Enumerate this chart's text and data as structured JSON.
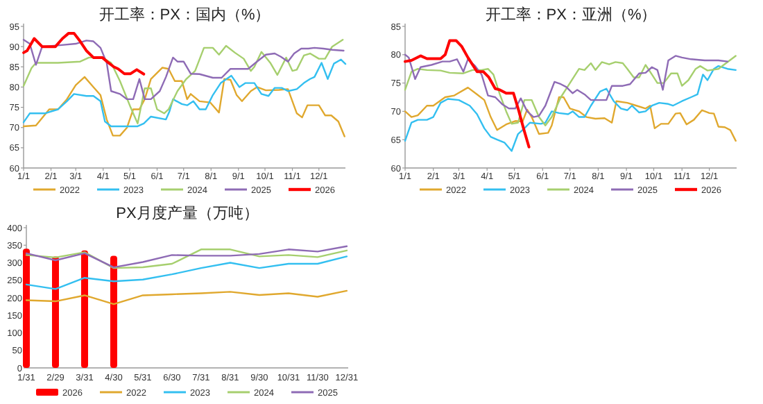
{
  "chart_data": [
    {
      "type": "line",
      "title": "开工率：PX：国内（%）",
      "xlim": [
        "--01-01",
        "--12-31"
      ],
      "ylim": [
        60,
        95
      ],
      "yticks": [
        60,
        65,
        70,
        75,
        80,
        85,
        90,
        95
      ],
      "xticks": [
        {
          "value": "--01-01",
          "label": "1/1"
        },
        {
          "value": "--02-01",
          "label": "2/1"
        },
        {
          "value": "--03-01",
          "label": "3/1"
        },
        {
          "value": "--04-01",
          "label": "4/1"
        },
        {
          "value": "--05-01",
          "label": "5/1"
        },
        {
          "value": "--06-01",
          "label": "6/1"
        },
        {
          "value": "--07-01",
          "label": "7/1"
        },
        {
          "value": "--08-01",
          "label": "8/1"
        },
        {
          "value": "--09-01",
          "label": "9/1"
        },
        {
          "value": "--10-01",
          "label": "10/1"
        },
        {
          "value": "--11-01",
          "label": "11/1"
        },
        {
          "value": "--12-01",
          "label": "12/1"
        }
      ],
      "legend": "bottom",
      "line_style": "solid",
      "series": [
        {
          "name": "2022",
          "color": "#e0a82e",
          "x": [
            "--01-01",
            "--01-15",
            "--01-30",
            "--02-09",
            "--02-19",
            "--03-01",
            "--03-11",
            "--03-21",
            "--03-29",
            "--04-05",
            "--04-12",
            "--04-20",
            "--04-28",
            "--05-05",
            "--05-12",
            "--05-18",
            "--05-25",
            "--06-07",
            "--06-14",
            "--06-21",
            "--06-29",
            "--07-05",
            "--07-09",
            "--07-19",
            "--07-31",
            "--08-10",
            "--08-16",
            "--08-23",
            "--08-30",
            "--09-05",
            "--09-15",
            "--09-22",
            "--10-02",
            "--10-17",
            "--10-27",
            "--11-06",
            "--11-12",
            "--11-18",
            "--12-01",
            "--12-08",
            "--12-15",
            "--12-23",
            "--12-30"
          ],
          "values": [
            70.3,
            70.5,
            74.5,
            74.5,
            77,
            80.5,
            82.5,
            80,
            78,
            72,
            68,
            68,
            70,
            74.5,
            74.5,
            77,
            82,
            84.8,
            84.5,
            81.5,
            81.5,
            77,
            78.3,
            76.5,
            76.2,
            73.7,
            82,
            81.8,
            78,
            76.5,
            79,
            80,
            79.2,
            79.3,
            79.5,
            73.5,
            72.5,
            75.5,
            75.5,
            73,
            73,
            71.5,
            67.8
          ]
        },
        {
          "name": "2023",
          "color": "#33bff0",
          "x": [
            "--01-01",
            "--01-08",
            "--01-25",
            "--02-09",
            "--02-19",
            "--02-27",
            "--03-13",
            "--03-21",
            "--03-29",
            "--04-03",
            "--04-10",
            "--05-10",
            "--05-17",
            "--05-25",
            "--06-11",
            "--06-15",
            "--06-19",
            "--06-29",
            "--07-05",
            "--07-12",
            "--07-19",
            "--07-26",
            "--08-03",
            "--08-12",
            "--08-24",
            "--09-02",
            "--09-09",
            "--09-19",
            "--09-27",
            "--10-05",
            "--10-12",
            "--10-20",
            "--10-27",
            "--11-06",
            "--11-14",
            "--11-21",
            "--11-26",
            "--12-04",
            "--12-11",
            "--12-18",
            "--12-26",
            "--12-31"
          ],
          "values": [
            71.3,
            73.5,
            73.5,
            74.5,
            76.5,
            78.3,
            77.8,
            77.8,
            76.5,
            71.5,
            70.3,
            70.3,
            71,
            72.7,
            72,
            74,
            77,
            75.8,
            75.5,
            76.5,
            74.5,
            74.5,
            78,
            81,
            82.8,
            80,
            81,
            81,
            78.3,
            77.8,
            79.8,
            79.8,
            79,
            79.5,
            81,
            82,
            82.5,
            86,
            82,
            85.8,
            86.8,
            85.7
          ]
        },
        {
          "name": "2024",
          "color": "#a6cf6e",
          "x": [
            "--01-01",
            "--01-10",
            "--01-15",
            "--02-09",
            "--03-06",
            "--03-16",
            "--03-31",
            "--04-10",
            "--04-20",
            "--05-02",
            "--05-10",
            "--05-18",
            "--05-25",
            "--06-01",
            "--06-09",
            "--06-14",
            "--06-24",
            "--07-04",
            "--07-14",
            "--07-24",
            "--08-03",
            "--08-10",
            "--08-18",
            "--08-28",
            "--09-07",
            "--09-15",
            "--09-19",
            "--09-27",
            "--10-07",
            "--10-15",
            "--10-25",
            "--11-01",
            "--11-06",
            "--11-14",
            "--11-21",
            "--12-01",
            "--12-08",
            "--12-16",
            "--12-28"
          ],
          "values": [
            80.3,
            84.7,
            86,
            86,
            86.3,
            87.3,
            87.3,
            86,
            81.5,
            75,
            71,
            79.7,
            79.7,
            74.5,
            73.5,
            74.5,
            79,
            82,
            84,
            89.7,
            89.7,
            88,
            90.2,
            88.5,
            87,
            84,
            85,
            88.7,
            86,
            83,
            87.3,
            84,
            84.3,
            87.8,
            88.3,
            87,
            87,
            90,
            91.7
          ]
        },
        {
          "name": "2025",
          "color": "#8e6bb5",
          "x": [
            "--01-01",
            "--01-08",
            "--01-15",
            "--01-22",
            "--02-09",
            "--03-01",
            "--03-13",
            "--03-21",
            "--03-29",
            "--04-05",
            "--04-10",
            "--04-20",
            "--04-28",
            "--05-05",
            "--05-12",
            "--05-18",
            "--05-25",
            "--06-04",
            "--06-11",
            "--06-19",
            "--06-24",
            "--07-01",
            "--07-09",
            "--07-19",
            "--08-03",
            "--08-13",
            "--08-23",
            "--09-12",
            "--09-22",
            "--10-02",
            "--10-12",
            "--10-19",
            "--10-27",
            "--11-03",
            "--11-11",
            "--11-19",
            "--11-26",
            "--12-06",
            "--12-16",
            "--12-29"
          ],
          "values": [
            91.7,
            90.7,
            85.5,
            90,
            90.3,
            90.7,
            91.5,
            91.3,
            89.7,
            86,
            79,
            78.3,
            77,
            77,
            82,
            77,
            77,
            79,
            82.5,
            87.3,
            86.3,
            86.3,
            83.3,
            83.2,
            82.3,
            82.3,
            84.5,
            84.5,
            86.3,
            88,
            88.3,
            87.5,
            86.3,
            88.3,
            89.5,
            89.5,
            89.7,
            89.5,
            89.2,
            89
          ]
        },
        {
          "name": "2026",
          "color": "#ff0000",
          "x": [
            "--01-01",
            "--01-05",
            "--01-13",
            "--01-22",
            "--02-06",
            "--02-14",
            "--02-21",
            "--02-27",
            "--03-06",
            "--03-13",
            "--03-21",
            "--03-31",
            "--04-07",
            "--04-13",
            "--04-18",
            "--04-25",
            "--05-02",
            "--05-09",
            "--05-17"
          ],
          "values": [
            88.5,
            89,
            92,
            90,
            90,
            92,
            93.3,
            93.3,
            91.3,
            89,
            87.3,
            87.3,
            86,
            85,
            84.5,
            83.3,
            83.3,
            84.3,
            83.2
          ]
        }
      ]
    },
    {
      "type": "line",
      "title": "开工率：PX：亚洲（%）",
      "xlim": [
        "--01-01",
        "--12-31"
      ],
      "ylim": [
        60,
        85
      ],
      "yticks": [
        60,
        65,
        70,
        75,
        80,
        85
      ],
      "xticks": [
        {
          "value": "--01-01",
          "label": "1/1"
        },
        {
          "value": "--02-01",
          "label": "2/1"
        },
        {
          "value": "--03-01",
          "label": "3/1"
        },
        {
          "value": "--04-01",
          "label": "4/1"
        },
        {
          "value": "--05-01",
          "label": "5/1"
        },
        {
          "value": "--06-01",
          "label": "6/1"
        },
        {
          "value": "--07-01",
          "label": "7/1"
        },
        {
          "value": "--08-01",
          "label": "8/1"
        },
        {
          "value": "--09-01",
          "label": "9/1"
        },
        {
          "value": "--10-01",
          "label": "10/1"
        },
        {
          "value": "--11-01",
          "label": "11/1"
        },
        {
          "value": "--12-01",
          "label": "12/1"
        }
      ],
      "legend": "bottom",
      "line_style": "solid",
      "series": [
        {
          "name": "2022",
          "color": "#e0a82e",
          "x": [
            "--01-01",
            "--01-08",
            "--01-15",
            "--01-25",
            "--02-01",
            "--02-14",
            "--02-24",
            "--03-11",
            "--03-21",
            "--03-29",
            "--04-05",
            "--04-12",
            "--04-22",
            "--05-02",
            "--05-10",
            "--05-15",
            "--05-20",
            "--05-28",
            "--06-07",
            "--06-11",
            "--06-19",
            "--06-24",
            "--07-01",
            "--07-11",
            "--07-19",
            "--07-29",
            "--08-08",
            "--08-16",
            "--08-21",
            "--09-02",
            "--09-12",
            "--09-22",
            "--09-27",
            "--10-02",
            "--10-09",
            "--10-17",
            "--10-25",
            "--10-30",
            "--11-06",
            "--11-14",
            "--11-23",
            "--12-01",
            "--12-06",
            "--12-11",
            "--12-18",
            "--12-24",
            "--12-30"
          ],
          "values": [
            70,
            69,
            69.3,
            71,
            71,
            72.5,
            72.8,
            74.2,
            73,
            72,
            69,
            66.7,
            67.7,
            68.3,
            68.2,
            70.3,
            69,
            66,
            66.2,
            67.5,
            72.5,
            72.5,
            70.5,
            70,
            69,
            68.7,
            68.8,
            68,
            71.8,
            71.5,
            71,
            70.5,
            71,
            67,
            67.8,
            67.8,
            69.6,
            69.7,
            67.7,
            68.5,
            70.2,
            69.7,
            69.6,
            67.3,
            67.2,
            66.7,
            64.8
          ]
        },
        {
          "name": "2023",
          "color": "#33bff0",
          "x": [
            "--01-01",
            "--01-08",
            "--01-15",
            "--01-25",
            "--02-01",
            "--02-09",
            "--02-17",
            "--03-01",
            "--03-13",
            "--03-21",
            "--03-29",
            "--04-05",
            "--04-12",
            "--04-20",
            "--04-28",
            "--05-05",
            "--05-12",
            "--05-18",
            "--05-30",
            "--06-04",
            "--06-11",
            "--06-19",
            "--06-29",
            "--07-04",
            "--07-11",
            "--07-17",
            "--07-24",
            "--08-03",
            "--08-10",
            "--08-18",
            "--08-26",
            "--09-02",
            "--09-07",
            "--09-15",
            "--09-22",
            "--09-29",
            "--10-07",
            "--10-17",
            "--10-22",
            "--11-01",
            "--11-11",
            "--11-18",
            "--11-24",
            "--11-29",
            "--12-06",
            "--12-11",
            "--12-21",
            "--12-30"
          ],
          "values": [
            64.8,
            68,
            68.5,
            68.5,
            69,
            71.5,
            72.2,
            72,
            71,
            69.5,
            67,
            65.5,
            65,
            64.5,
            63,
            66,
            67,
            68,
            67.8,
            68,
            70,
            69.7,
            69.5,
            70,
            69,
            69,
            71,
            73.5,
            74,
            71.8,
            70.5,
            70.2,
            71,
            69.8,
            70,
            71,
            71.5,
            71.3,
            71,
            71.8,
            72.5,
            73,
            76.5,
            75.5,
            77.5,
            78,
            77.5,
            77.3
          ]
        },
        {
          "name": "2024",
          "color": "#a6cf6e",
          "x": [
            "--01-01",
            "--01-08",
            "--01-15",
            "--01-25",
            "--02-09",
            "--02-19",
            "--03-06",
            "--03-16",
            "--03-26",
            "--04-02",
            "--04-08",
            "--04-15",
            "--04-22",
            "--04-28",
            "--05-05",
            "--05-12",
            "--05-20",
            "--05-28",
            "--06-04",
            "--06-11",
            "--06-21",
            "--07-01",
            "--07-11",
            "--07-17",
            "--07-24",
            "--07-29",
            "--08-05",
            "--08-13",
            "--08-20",
            "--08-28",
            "--09-02",
            "--09-09",
            "--09-15",
            "--09-22",
            "--09-29",
            "--10-05",
            "--10-12",
            "--10-20",
            "--10-27",
            "--11-01",
            "--11-08",
            "--11-16",
            "--11-21",
            "--11-29",
            "--12-11",
            "--12-30"
          ],
          "values": [
            73.8,
            77,
            77.5,
            77.3,
            77.2,
            76.8,
            76.7,
            77.3,
            77.3,
            77.5,
            76.5,
            73,
            70,
            67.8,
            68,
            72,
            72,
            69,
            67.5,
            69,
            72.5,
            75,
            77.5,
            77.3,
            78.5,
            77.3,
            78.7,
            78.3,
            78.7,
            78.5,
            77.5,
            76,
            76,
            78.2,
            76.5,
            75,
            75,
            76.7,
            76.7,
            74.5,
            75.5,
            77.5,
            78,
            77.2,
            77.5,
            79.8
          ]
        },
        {
          "name": "2025",
          "color": "#8e6bb5",
          "x": [
            "--01-01",
            "--01-05",
            "--01-12",
            "--01-18",
            "--01-30",
            "--02-11",
            "--02-19",
            "--02-27",
            "--03-06",
            "--03-11",
            "--03-19",
            "--03-26",
            "--04-02",
            "--04-10",
            "--04-18",
            "--04-25",
            "--05-02",
            "--05-08",
            "--05-15",
            "--05-22",
            "--05-28",
            "--06-04",
            "--06-14",
            "--06-21",
            "--06-27",
            "--07-04",
            "--07-09",
            "--07-17",
            "--07-24",
            "--08-03",
            "--08-10",
            "--08-16",
            "--08-28",
            "--09-05",
            "--09-15",
            "--09-22",
            "--09-29",
            "--10-05",
            "--10-11",
            "--10-17",
            "--10-25",
            "--11-01",
            "--11-11",
            "--11-26",
            "--12-11",
            "--12-21"
          ],
          "values": [
            80,
            79.5,
            75.7,
            77.8,
            78.2,
            78.8,
            78.8,
            79.2,
            77,
            79.2,
            78,
            76.5,
            72.8,
            72.5,
            71.2,
            70.5,
            70.5,
            72.3,
            70,
            69,
            69.2,
            71,
            75.2,
            74.8,
            74.3,
            73.2,
            73.8,
            73,
            72,
            72,
            72,
            74.5,
            74.5,
            74.8,
            76.7,
            76.8,
            77.8,
            77.3,
            73.8,
            79,
            79.8,
            79.5,
            79.2,
            79,
            79,
            78.8
          ]
        },
        {
          "name": "2026",
          "color": "#ff0000",
          "x": [
            "--01-01",
            "--01-08",
            "--01-18",
            "--01-25",
            "--02-09",
            "--02-14",
            "--02-19",
            "--02-26",
            "--03-04",
            "--03-11",
            "--03-21",
            "--03-28",
            "--04-03",
            "--04-10",
            "--04-15",
            "--04-22",
            "--04-30",
            "--05-06",
            "--05-11",
            "--05-17"
          ],
          "values": [
            78.8,
            79,
            79.8,
            79.3,
            79.3,
            80,
            82.5,
            82.5,
            81.5,
            79.5,
            77,
            77,
            76,
            74,
            73.8,
            73.2,
            73.2,
            70,
            67,
            63.7
          ]
        }
      ]
    },
    {
      "type": "line",
      "title": "PX月度产量（万吨）",
      "categories": [
        "1/31",
        "2/29",
        "3/31",
        "4/30",
        "5/31",
        "6/30",
        "7/31",
        "8/31",
        "9/30",
        "10/31",
        "11/30",
        "12/31"
      ],
      "ylim": [
        0,
        400
      ],
      "yticks": [
        0,
        50,
        100,
        150,
        200,
        250,
        300,
        350,
        400
      ],
      "legend": "bottom",
      "line_style": "solid",
      "series": [
        {
          "name": "2026",
          "type": "bar",
          "color": "#ff0000",
          "values": [
            340,
            318,
            335,
            320,
            null,
            null,
            null,
            null,
            null,
            null,
            null,
            null
          ]
        },
        {
          "name": "2022",
          "color": "#e0a82e",
          "values": [
            193,
            190,
            207,
            182,
            207,
            210,
            213,
            217,
            208,
            213,
            203,
            220
          ]
        },
        {
          "name": "2023",
          "color": "#33bff0",
          "values": [
            238,
            225,
            257,
            247,
            252,
            267,
            285,
            300,
            285,
            297,
            297,
            318
          ]
        },
        {
          "name": "2024",
          "color": "#a6cf6e",
          "values": [
            322,
            315,
            330,
            285,
            287,
            297,
            338,
            338,
            318,
            322,
            316,
            335
          ]
        },
        {
          "name": "2025",
          "color": "#8e6bb5",
          "values": [
            327,
            307,
            327,
            287,
            302,
            322,
            320,
            320,
            325,
            338,
            332,
            347
          ]
        }
      ]
    }
  ]
}
